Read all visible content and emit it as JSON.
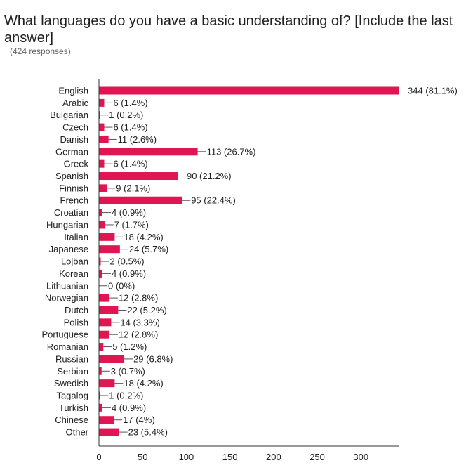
{
  "title": "What languages do you have a basic understanding of? [Include the last answer]",
  "subtitle": "(424 responses)",
  "colors": {
    "bar": "#E01653",
    "axis": "#333333",
    "leader": "#555555"
  },
  "chart_data": {
    "type": "bar",
    "orientation": "horizontal",
    "categories": [
      "English",
      "Arabic",
      "Bulgarian",
      "Czech",
      "Danish",
      "German",
      "Greek",
      "Spanish",
      "Finnish",
      "French",
      "Croatian",
      "Hungarian",
      "Italian",
      "Japanese",
      "Lojban",
      "Korean",
      "Lithuanian",
      "Norwegian",
      "Dutch",
      "Polish",
      "Portuguese",
      "Romanian",
      "Russian",
      "Serbian",
      "Swedish",
      "Tagalog",
      "Turkish",
      "Chinese",
      "Other"
    ],
    "values": [
      344,
      6,
      1,
      6,
      11,
      113,
      6,
      90,
      9,
      95,
      4,
      7,
      18,
      24,
      2,
      4,
      0,
      12,
      22,
      14,
      12,
      5,
      29,
      3,
      18,
      1,
      4,
      17,
      23
    ],
    "labels": [
      "344 (81.1%)",
      "6 (1.4%)",
      "1 (0.2%)",
      "6 (1.4%)",
      "11 (2.6%)",
      "113 (26.7%)",
      "6 (1.4%)",
      "90 (21.2%)",
      "9 (2.1%)",
      "95 (22.4%)",
      "4 (0.9%)",
      "7 (1.7%)",
      "18 (4.2%)",
      "24 (5.7%)",
      "2 (0.5%)",
      "4 (0.9%)",
      "0 (0%)",
      "12 (2.8%)",
      "22 (5.2%)",
      "14 (3.3%)",
      "12 (2.8%)",
      "5 (1.2%)",
      "29 (6.8%)",
      "3 (0.7%)",
      "18 (4.2%)",
      "1 (0.2%)",
      "4 (0.9%)",
      "17 (4%)",
      "23 (5.4%)"
    ],
    "xticks": [
      0,
      50,
      100,
      150,
      200,
      250,
      300
    ],
    "xlim": [
      0,
      344
    ],
    "grid": false,
    "legend": "none"
  }
}
